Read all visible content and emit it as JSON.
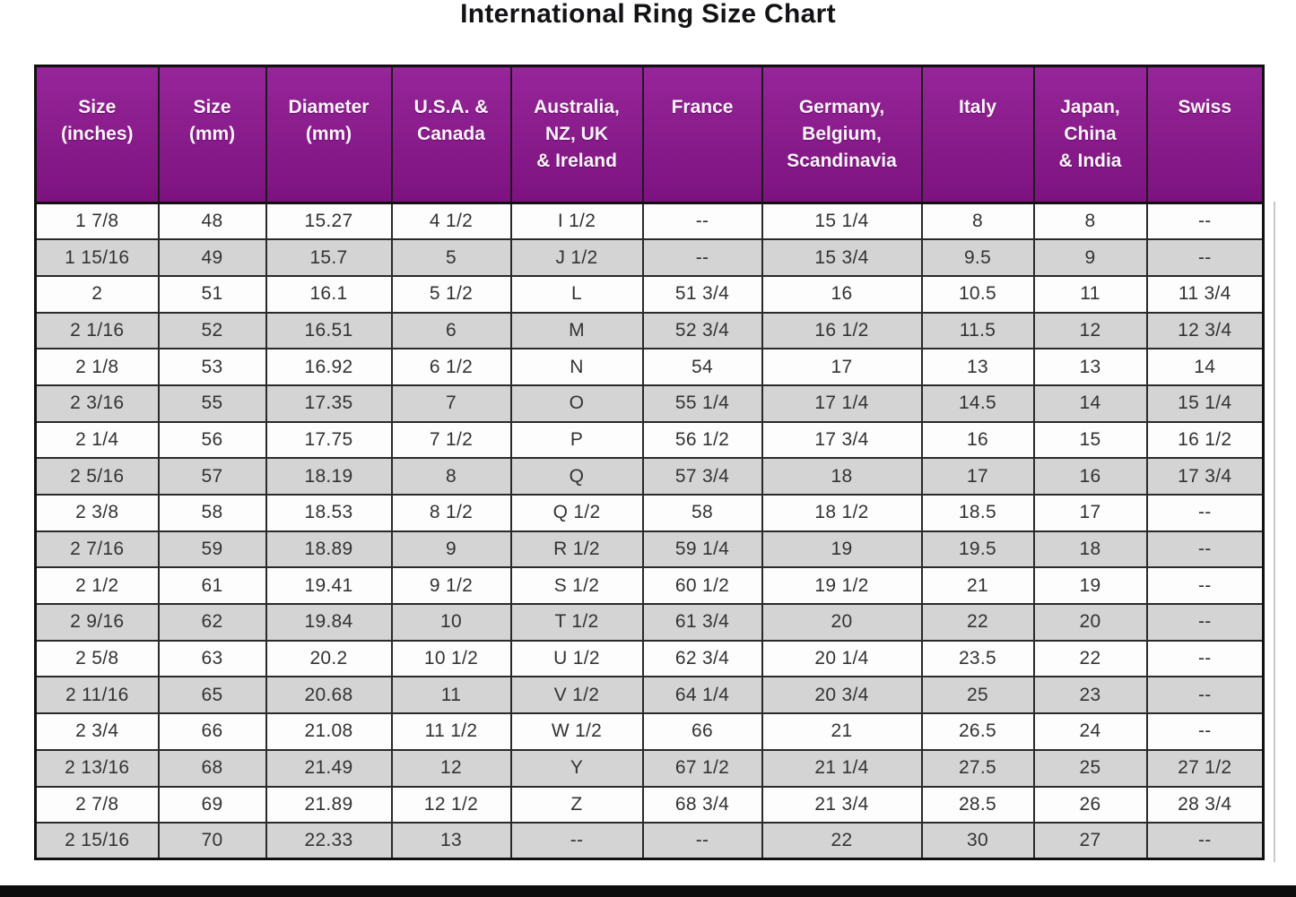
{
  "title": "International Ring Size Chart",
  "colors": {
    "header_bg": "#8E1591",
    "header_text": "#FAF5FA",
    "row_alt_bg": "#D4D4D4",
    "row_bg": "#FDFDFD",
    "cell_text": "#333333",
    "border_dark": "#1C1C1C",
    "title_text": "#131316",
    "bottom_bar": "#0D0D0D"
  },
  "chart_data": {
    "type": "table",
    "title": "International Ring Size Chart",
    "columns": [
      "Size\n(inches)",
      "Size\n(mm)",
      "Diameter\n(mm)",
      "U.S.A. &\nCanada",
      "Australia,\nNZ, UK\n& Ireland",
      "France",
      "Germany,\nBelgium,\nScandinavia",
      "Italy",
      "Japan,\nChina\n& India",
      "Swiss"
    ],
    "rows": [
      [
        "1 7/8",
        "48",
        "15.27",
        "4 1/2",
        "I 1/2",
        "--",
        "15 1/4",
        "8",
        "8",
        "--"
      ],
      [
        "1 15/16",
        "49",
        "15.7",
        "5",
        "J 1/2",
        "--",
        "15 3/4",
        "9.5",
        "9",
        "--"
      ],
      [
        "2",
        "51",
        "16.1",
        "5 1/2",
        "L",
        "51 3/4",
        "16",
        "10.5",
        "11",
        "11 3/4"
      ],
      [
        "2 1/16",
        "52",
        "16.51",
        "6",
        "M",
        "52 3/4",
        "16 1/2",
        "11.5",
        "12",
        "12 3/4"
      ],
      [
        "2 1/8",
        "53",
        "16.92",
        "6 1/2",
        "N",
        "54",
        "17",
        "13",
        "13",
        "14"
      ],
      [
        "2 3/16",
        "55",
        "17.35",
        "7",
        "O",
        "55 1/4",
        "17 1/4",
        "14.5",
        "14",
        "15 1/4"
      ],
      [
        "2 1/4",
        "56",
        "17.75",
        "7 1/2",
        "P",
        "56 1/2",
        "17 3/4",
        "16",
        "15",
        "16 1/2"
      ],
      [
        "2 5/16",
        "57",
        "18.19",
        "8",
        "Q",
        "57 3/4",
        "18",
        "17",
        "16",
        "17 3/4"
      ],
      [
        "2 3/8",
        "58",
        "18.53",
        "8 1/2",
        "Q 1/2",
        "58",
        "18 1/2",
        "18.5",
        "17",
        "--"
      ],
      [
        "2 7/16",
        "59",
        "18.89",
        "9",
        "R 1/2",
        "59 1/4",
        "19",
        "19.5",
        "18",
        "--"
      ],
      [
        "2 1/2",
        "61",
        "19.41",
        "9 1/2",
        "S 1/2",
        "60 1/2",
        "19 1/2",
        "21",
        "19",
        "--"
      ],
      [
        "2 9/16",
        "62",
        "19.84",
        "10",
        "T 1/2",
        "61 3/4",
        "20",
        "22",
        "20",
        "--"
      ],
      [
        "2 5/8",
        "63",
        "20.2",
        "10 1/2",
        "U 1/2",
        "62 3/4",
        "20 1/4",
        "23.5",
        "22",
        "--"
      ],
      [
        "2 11/16",
        "65",
        "20.68",
        "11",
        "V 1/2",
        "64 1/4",
        "20 3/4",
        "25",
        "23",
        "--"
      ],
      [
        "2 3/4",
        "66",
        "21.08",
        "11 1/2",
        "W 1/2",
        "66",
        "21",
        "26.5",
        "24",
        "--"
      ],
      [
        "2 13/16",
        "68",
        "21.49",
        "12",
        "Y",
        "67 1/2",
        "21 1/4",
        "27.5",
        "25",
        "27 1/2"
      ],
      [
        "2 7/8",
        "69",
        "21.89",
        "12 1/2",
        "Z",
        "68 3/4",
        "21 3/4",
        "28.5",
        "26",
        "28 3/4"
      ],
      [
        "2 15/16",
        "70",
        "22.33",
        "13",
        "--",
        "--",
        "22",
        "30",
        "27",
        "--"
      ]
    ],
    "layout_hints": {
      "header_bg": "#8E1591",
      "alternating_rows": true,
      "first_data_row": "white",
      "grid": true
    }
  }
}
